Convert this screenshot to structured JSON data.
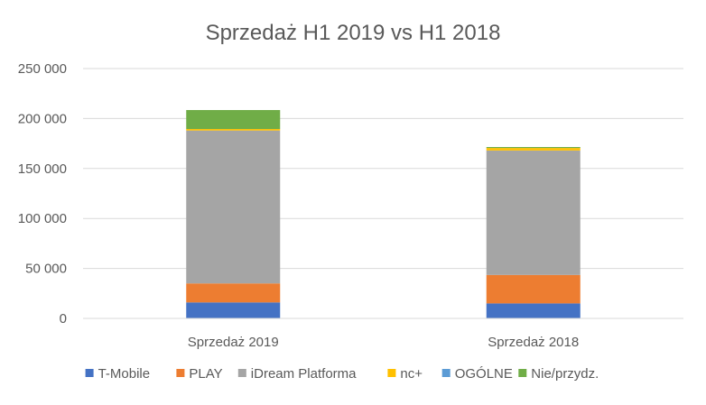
{
  "chart_data": {
    "type": "bar",
    "stacked": true,
    "title": "Sprzedaż H1 2019 vs H1 2018",
    "categories": [
      "Sprzedaż 2019",
      "Sprzedaż 2018"
    ],
    "series": [
      {
        "name": "T-Mobile",
        "color": "#4472C4",
        "values": [
          16000,
          15000
        ]
      },
      {
        "name": "PLAY",
        "color": "#ED7D31",
        "values": [
          19000,
          28500
        ]
      },
      {
        "name": "iDream Platforma",
        "color": "#A5A5A5",
        "values": [
          153000,
          124500
        ]
      },
      {
        "name": "nc+",
        "color": "#FFC000",
        "values": [
          1500,
          2500
        ]
      },
      {
        "name": "OGÓLNE",
        "color": "#5B9BD5",
        "values": [
          0,
          0
        ]
      },
      {
        "name": "Nie/przydz.",
        "color": "#70AD47",
        "values": [
          19000,
          1000
        ]
      }
    ],
    "ylim": [
      0,
      250000
    ],
    "yticks": [
      0,
      50000,
      100000,
      150000,
      200000,
      250000
    ],
    "ytick_labels": [
      "0",
      "50 000",
      "100 000",
      "150 000",
      "200 000",
      "250 000"
    ],
    "grid": true,
    "legend_position": "bottom"
  }
}
